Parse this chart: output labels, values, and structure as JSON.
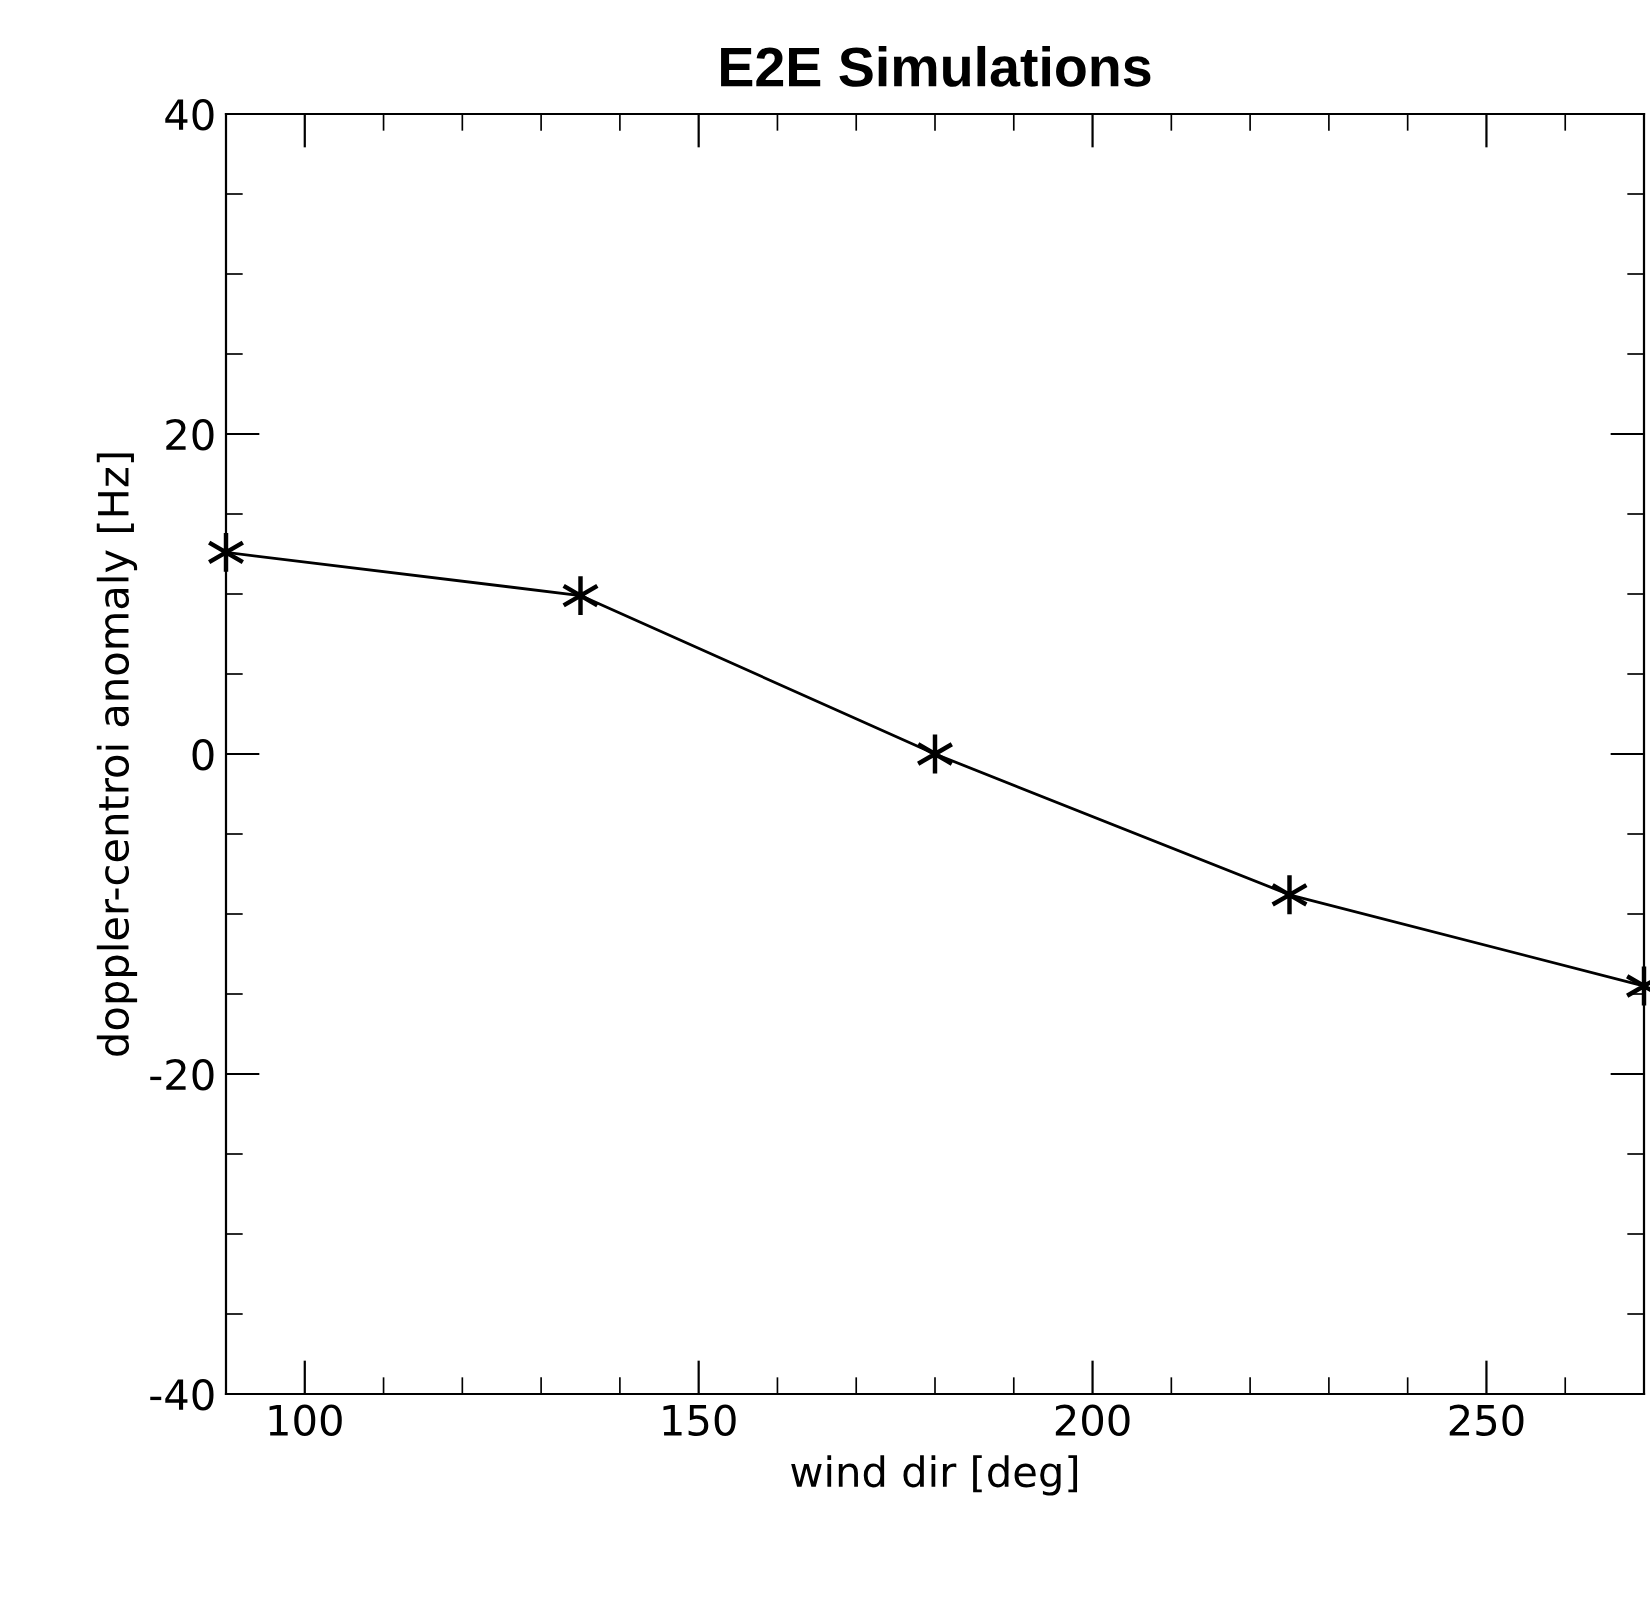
{
  "chart_data": {
    "type": "line",
    "title": "E2E Simulations",
    "xlabel": "wind dir [deg]",
    "ylabel": "doppler-centroi anomaly [Hz]",
    "x": [
      90,
      135,
      180,
      225,
      270
    ],
    "series": [
      {
        "color": "#000000",
        "values": [
          12.6,
          9.9,
          0,
          -8.8,
          -14.5
        ]
      }
    ],
    "xlim": [
      90,
      270
    ],
    "xticks": [
      100,
      150,
      200,
      250
    ],
    "ylim": [
      -40,
      40
    ],
    "yticks": [
      -40,
      -20,
      0,
      20,
      40
    ],
    "marker": "cross",
    "line_style": "solid",
    "grid": false,
    "legend": false
  }
}
